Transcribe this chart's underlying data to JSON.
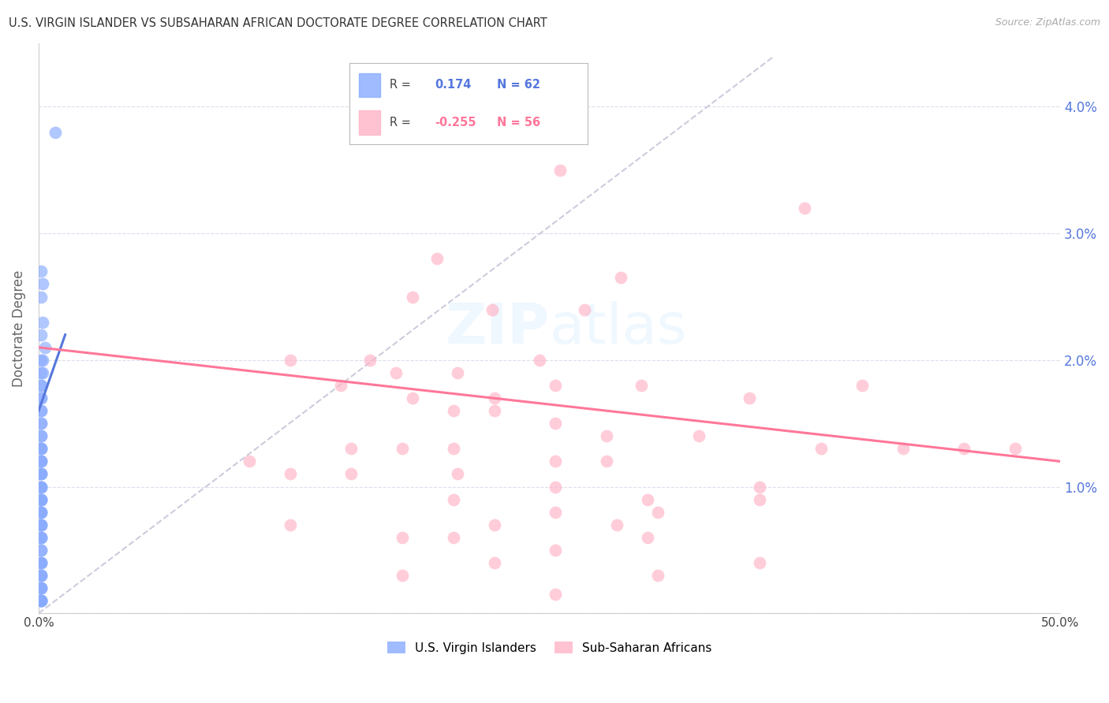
{
  "title": "U.S. VIRGIN ISLANDER VS SUBSAHARAN AFRICAN DOCTORATE DEGREE CORRELATION CHART",
  "source": "Source: ZipAtlas.com",
  "ylabel_label": "Doctorate Degree",
  "xlim": [
    0.0,
    0.5
  ],
  "ylim": [
    0.0,
    0.045
  ],
  "xticks": [
    0.0,
    0.1,
    0.2,
    0.3,
    0.4,
    0.5
  ],
  "xtick_labels": [
    "0.0%",
    "",
    "",
    "",
    "",
    "50.0%"
  ],
  "yticks": [
    0.0,
    0.01,
    0.02,
    0.03,
    0.04
  ],
  "ytick_labels_right": [
    "",
    "1.0%",
    "2.0%",
    "3.0%",
    "4.0%"
  ],
  "color_blue": "#88AAFF",
  "color_pink": "#FFB3C6",
  "color_trendline_blue": "#5577DD",
  "color_trendline_pink": "#FF7799",
  "color_dashed_line": "#CCCCDD",
  "color_right_tick": "#5577DD",
  "color_grid": "#DDDDEE",
  "background": "#FFFFFF",
  "blue_x": [
    0.008,
    0.001,
    0.002,
    0.001,
    0.002,
    0.001,
    0.003,
    0.002,
    0.001,
    0.001,
    0.002,
    0.001,
    0.001,
    0.001,
    0.001,
    0.001,
    0.001,
    0.001,
    0.001,
    0.001,
    0.001,
    0.001,
    0.001,
    0.001,
    0.001,
    0.001,
    0.001,
    0.001,
    0.001,
    0.001,
    0.001,
    0.001,
    0.001,
    0.001,
    0.001,
    0.001,
    0.001,
    0.001,
    0.001,
    0.001,
    0.001,
    0.001,
    0.001,
    0.001,
    0.001,
    0.001,
    0.001,
    0.001,
    0.001,
    0.001,
    0.001,
    0.001,
    0.001,
    0.001,
    0.001,
    0.001,
    0.001,
    0.001,
    0.001,
    0.001,
    0.001,
    0.001
  ],
  "blue_y": [
    0.038,
    0.027,
    0.026,
    0.025,
    0.023,
    0.022,
    0.021,
    0.02,
    0.02,
    0.019,
    0.019,
    0.018,
    0.018,
    0.017,
    0.017,
    0.016,
    0.016,
    0.015,
    0.015,
    0.014,
    0.014,
    0.013,
    0.013,
    0.013,
    0.012,
    0.012,
    0.012,
    0.011,
    0.011,
    0.011,
    0.01,
    0.01,
    0.01,
    0.009,
    0.009,
    0.009,
    0.009,
    0.008,
    0.008,
    0.008,
    0.007,
    0.007,
    0.007,
    0.006,
    0.006,
    0.006,
    0.005,
    0.005,
    0.004,
    0.004,
    0.004,
    0.003,
    0.003,
    0.003,
    0.002,
    0.002,
    0.002,
    0.001,
    0.001,
    0.001,
    0.001,
    0.001
  ],
  "pink_x": [
    0.255,
    0.195,
    0.285,
    0.375,
    0.183,
    0.222,
    0.267,
    0.245,
    0.162,
    0.123,
    0.175,
    0.205,
    0.148,
    0.253,
    0.295,
    0.223,
    0.183,
    0.348,
    0.203,
    0.223,
    0.253,
    0.278,
    0.323,
    0.153,
    0.178,
    0.203,
    0.103,
    0.278,
    0.253,
    0.153,
    0.123,
    0.205,
    0.353,
    0.253,
    0.403,
    0.203,
    0.298,
    0.353,
    0.453,
    0.303,
    0.253,
    0.223,
    0.123,
    0.283,
    0.298,
    0.178,
    0.203,
    0.253,
    0.383,
    0.423,
    0.478,
    0.353,
    0.223,
    0.178,
    0.303,
    0.253
  ],
  "pink_y": [
    0.035,
    0.028,
    0.0265,
    0.032,
    0.025,
    0.024,
    0.024,
    0.02,
    0.02,
    0.02,
    0.019,
    0.019,
    0.018,
    0.018,
    0.018,
    0.017,
    0.017,
    0.017,
    0.016,
    0.016,
    0.015,
    0.014,
    0.014,
    0.013,
    0.013,
    0.013,
    0.012,
    0.012,
    0.012,
    0.011,
    0.011,
    0.011,
    0.01,
    0.01,
    0.018,
    0.009,
    0.009,
    0.009,
    0.013,
    0.008,
    0.008,
    0.007,
    0.007,
    0.007,
    0.006,
    0.006,
    0.006,
    0.005,
    0.013,
    0.013,
    0.013,
    0.004,
    0.004,
    0.003,
    0.003,
    0.0015
  ],
  "diag_line_x": [
    0.0,
    0.36
  ],
  "diag_line_y": [
    0.0,
    0.044
  ],
  "blue_trend_x": [
    0.0,
    0.013
  ],
  "blue_trend_y": [
    0.016,
    0.022
  ],
  "pink_trend_x": [
    0.0,
    0.5
  ],
  "pink_trend_y": [
    0.021,
    0.012
  ]
}
